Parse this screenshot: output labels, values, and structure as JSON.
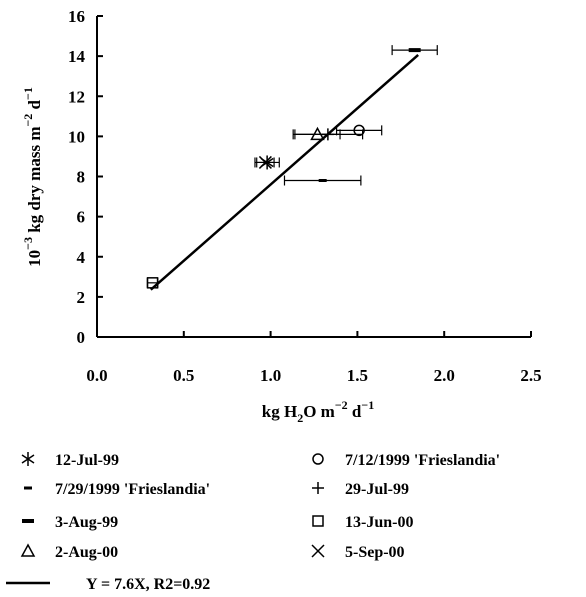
{
  "chart_data": {
    "type": "scatter",
    "xlabel": {
      "pre": "kg H",
      "sub": "2",
      "mid": "O m",
      "sup1": "−2",
      "post": " d",
      "sup2": "−1"
    },
    "ylabel": {
      "pre": "10",
      "sup0": "−3",
      "mid": " kg dry mass m",
      "sup1": "−2",
      "post": " d",
      "sup2": "−1"
    },
    "xlim": [
      0,
      2.5
    ],
    "ylim": [
      0,
      16
    ],
    "xticks": [
      0,
      0.5,
      1,
      1.5,
      2,
      2.5
    ],
    "xtick_labels": [
      "0.0",
      "0.5",
      "1.0",
      "1.5",
      "2.0",
      "2.5"
    ],
    "yticks": [
      0,
      2,
      4,
      6,
      8,
      10,
      12,
      14,
      16
    ],
    "ytick_labels": [
      "0",
      "2",
      "4",
      "6",
      "8",
      "10",
      "12",
      "14",
      "16"
    ],
    "grid": false,
    "legend_position": "bottom",
    "series": [
      {
        "name": "12-Jul-99",
        "marker": "asterisk",
        "points": [
          {
            "x": 0.98,
            "y": 8.7,
            "xerr": 0.07
          }
        ]
      },
      {
        "name": "7/12/1999  'Frieslandia'",
        "marker": "circle",
        "points": [
          {
            "x": 1.51,
            "y": 10.3,
            "xerr": 0.13
          }
        ]
      },
      {
        "name": "7/29/1999  'Frieslandia'",
        "marker": "dash",
        "points": [
          {
            "x": 1.3,
            "y": 7.8,
            "xerr": 0.22
          }
        ]
      },
      {
        "name": "29-Jul-99",
        "marker": "plus",
        "points": [
          {
            "x": 1.33,
            "y": 10.1,
            "xerr": 0.2
          }
        ]
      },
      {
        "name": "3-Aug-99",
        "marker": "thick-dash",
        "points": [
          {
            "x": 1.83,
            "y": 14.3,
            "xerr": 0.13
          }
        ]
      },
      {
        "name": "13-Jun-00",
        "marker": "square",
        "points": [
          {
            "x": 0.32,
            "y": 2.7,
            "xerr": 0.03
          }
        ]
      },
      {
        "name": "2-Aug-00",
        "marker": "triangle",
        "points": [
          {
            "x": 1.27,
            "y": 10.1,
            "xerr": 0.13
          }
        ]
      },
      {
        "name": "5-Sep-00",
        "marker": "x",
        "points": [
          {
            "x": 0.97,
            "y": 8.7,
            "xerr": 0.05
          }
        ]
      }
    ],
    "fit_line": {
      "label": "Y = 7.6X, R2=0.92",
      "slope": 7.6,
      "x_range": [
        0.31,
        1.85
      ]
    }
  }
}
